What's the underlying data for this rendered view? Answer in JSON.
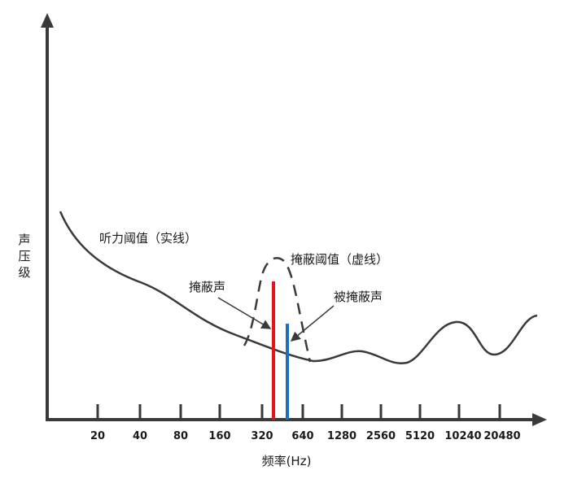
{
  "diagram": {
    "y_axis_label": [
      "声",
      "压",
      "级"
    ],
    "x_axis_label": "频率(Hz)",
    "x_ticks": [
      "20",
      "40",
      "80",
      "160",
      "320",
      "640",
      "1280",
      "2560",
      "5120",
      "10240",
      "20480"
    ],
    "annotations": {
      "hearing_threshold": "听力阈值（实线）",
      "masking_threshold": "掩蔽阈值（虚线）",
      "masker": "掩蔽声",
      "maskee": "被掩蔽声"
    },
    "colors": {
      "axis": "#3a3a3a",
      "curve": "#3a3a3a",
      "masker": "#e8141c",
      "maskee": "#1a6fc0",
      "text": "#1a1a1a"
    }
  }
}
